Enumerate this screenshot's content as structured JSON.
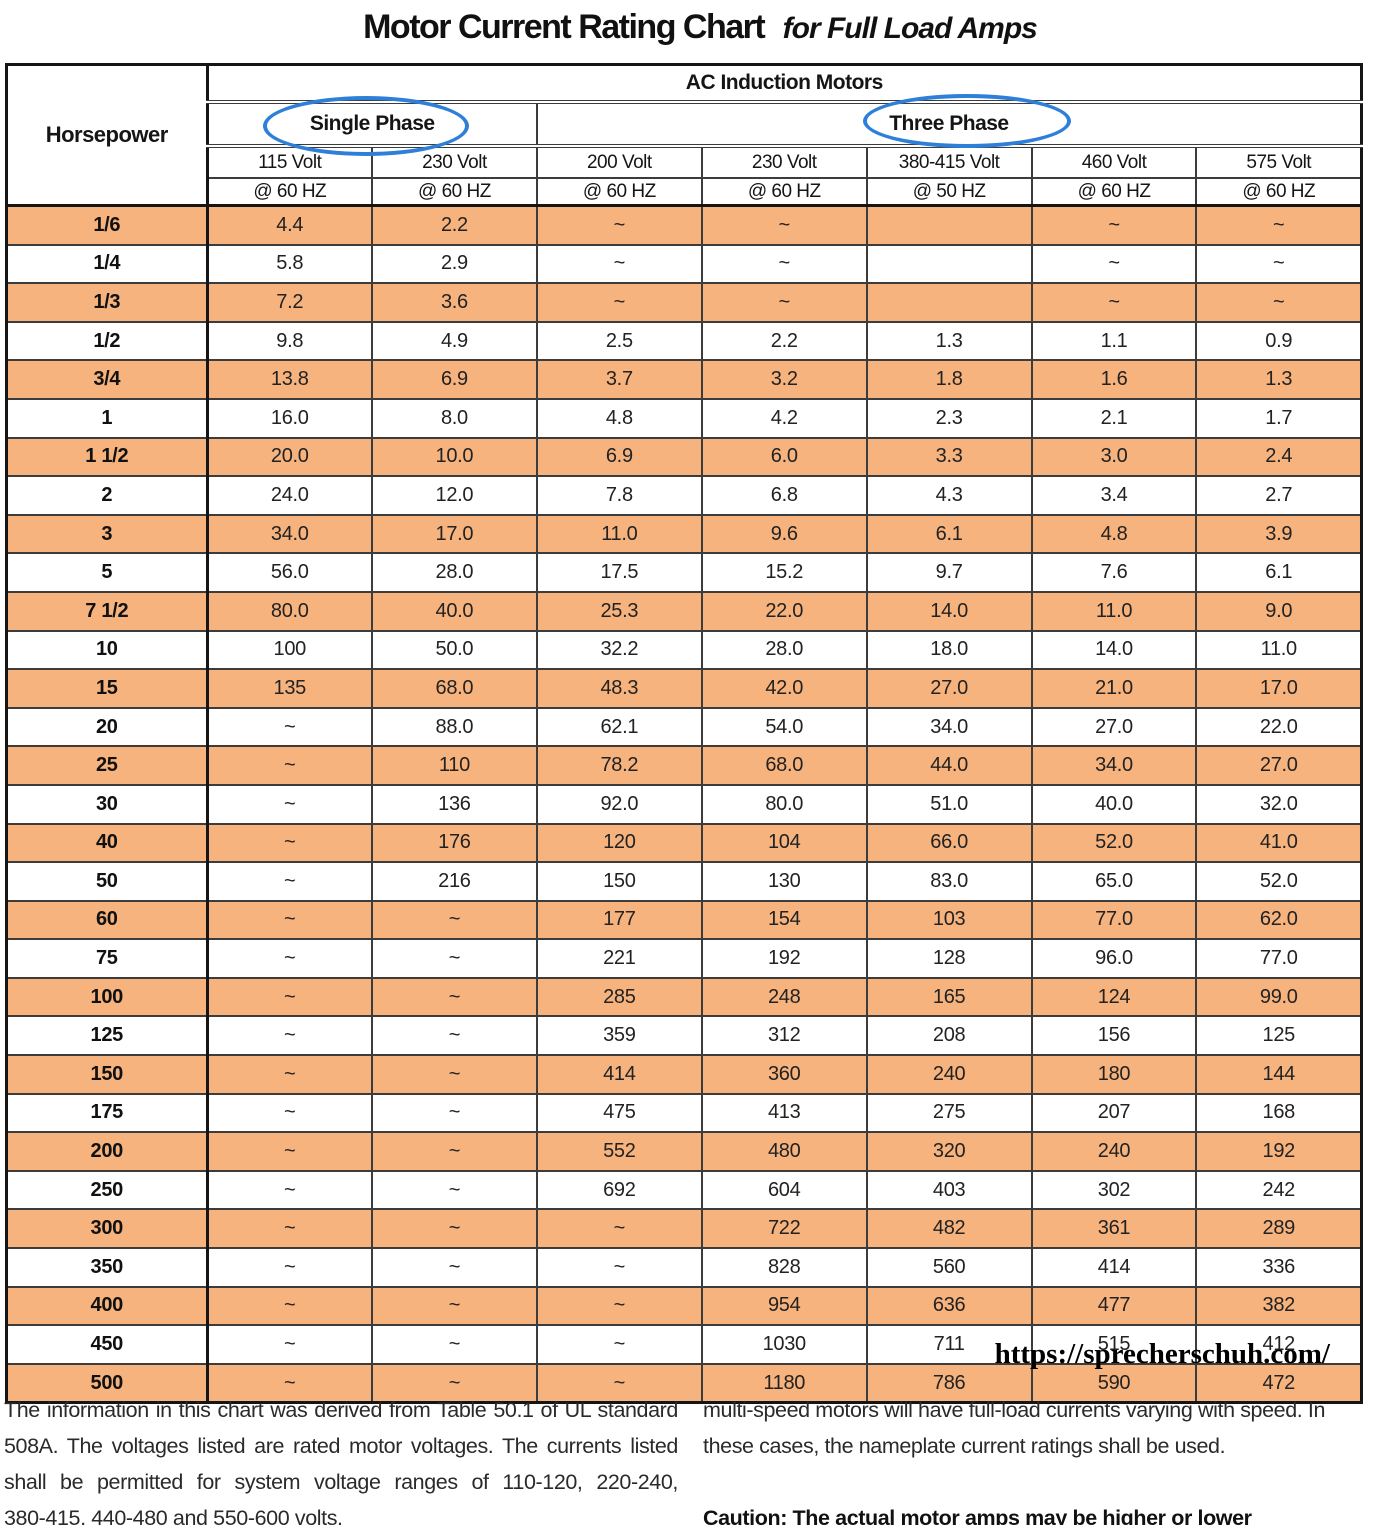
{
  "title": {
    "main": "Motor Current Rating Chart",
    "sub": "for Full Load Amps"
  },
  "table": {
    "col1_header": "Horsepower",
    "group_header": "AC Induction Motors",
    "phase_groups": [
      {
        "label": "Single Phase",
        "span": 2
      },
      {
        "label": "Three Phase",
        "span": 5
      }
    ],
    "columns": [
      {
        "volt": "115 Volt",
        "hz": "@ 60 HZ"
      },
      {
        "volt": "230 Volt",
        "hz": "@ 60 HZ"
      },
      {
        "volt": "200 Volt",
        "hz": "@ 60 HZ"
      },
      {
        "volt": "230 Volt",
        "hz": "@ 60 HZ"
      },
      {
        "volt": "380-415 Volt",
        "hz": "@ 50 HZ"
      },
      {
        "volt": "460 Volt",
        "hz": "@ 60 HZ"
      },
      {
        "volt": "575 Volt",
        "hz": "@ 60 HZ"
      }
    ],
    "rows": [
      {
        "hp": "1/6",
        "values": [
          "4.4",
          "2.2",
          "~",
          "~",
          "",
          "~",
          "~"
        ]
      },
      {
        "hp": "1/4",
        "values": [
          "5.8",
          "2.9",
          "~",
          "~",
          "",
          "~",
          "~"
        ]
      },
      {
        "hp": "1/3",
        "values": [
          "7.2",
          "3.6",
          "~",
          "~",
          "",
          "~",
          "~"
        ]
      },
      {
        "hp": "1/2",
        "values": [
          "9.8",
          "4.9",
          "2.5",
          "2.2",
          "1.3",
          "1.1",
          "0.9"
        ]
      },
      {
        "hp": "3/4",
        "values": [
          "13.8",
          "6.9",
          "3.7",
          "3.2",
          "1.8",
          "1.6",
          "1.3"
        ]
      },
      {
        "hp": "1",
        "values": [
          "16.0",
          "8.0",
          "4.8",
          "4.2",
          "2.3",
          "2.1",
          "1.7"
        ]
      },
      {
        "hp": "1 1/2",
        "values": [
          "20.0",
          "10.0",
          "6.9",
          "6.0",
          "3.3",
          "3.0",
          "2.4"
        ]
      },
      {
        "hp": "2",
        "values": [
          "24.0",
          "12.0",
          "7.8",
          "6.8",
          "4.3",
          "3.4",
          "2.7"
        ]
      },
      {
        "hp": "3",
        "values": [
          "34.0",
          "17.0",
          "11.0",
          "9.6",
          "6.1",
          "4.8",
          "3.9"
        ]
      },
      {
        "hp": "5",
        "values": [
          "56.0",
          "28.0",
          "17.5",
          "15.2",
          "9.7",
          "7.6",
          "6.1"
        ]
      },
      {
        "hp": "7 1/2",
        "values": [
          "80.0",
          "40.0",
          "25.3",
          "22.0",
          "14.0",
          "11.0",
          "9.0"
        ]
      },
      {
        "hp": "10",
        "values": [
          "100",
          "50.0",
          "32.2",
          "28.0",
          "18.0",
          "14.0",
          "11.0"
        ]
      },
      {
        "hp": "15",
        "values": [
          "135",
          "68.0",
          "48.3",
          "42.0",
          "27.0",
          "21.0",
          "17.0"
        ]
      },
      {
        "hp": "20",
        "values": [
          "~",
          "88.0",
          "62.1",
          "54.0",
          "34.0",
          "27.0",
          "22.0"
        ]
      },
      {
        "hp": "25",
        "values": [
          "~",
          "110",
          "78.2",
          "68.0",
          "44.0",
          "34.0",
          "27.0"
        ]
      },
      {
        "hp": "30",
        "values": [
          "~",
          "136",
          "92.0",
          "80.0",
          "51.0",
          "40.0",
          "32.0"
        ]
      },
      {
        "hp": "40",
        "values": [
          "~",
          "176",
          "120",
          "104",
          "66.0",
          "52.0",
          "41.0"
        ]
      },
      {
        "hp": "50",
        "values": [
          "~",
          "216",
          "150",
          "130",
          "83.0",
          "65.0",
          "52.0"
        ]
      },
      {
        "hp": "60",
        "values": [
          "~",
          "~",
          "177",
          "154",
          "103",
          "77.0",
          "62.0"
        ]
      },
      {
        "hp": "75",
        "values": [
          "~",
          "~",
          "221",
          "192",
          "128",
          "96.0",
          "77.0"
        ]
      },
      {
        "hp": "100",
        "values": [
          "~",
          "~",
          "285",
          "248",
          "165",
          "124",
          "99.0"
        ]
      },
      {
        "hp": "125",
        "values": [
          "~",
          "~",
          "359",
          "312",
          "208",
          "156",
          "125"
        ]
      },
      {
        "hp": "150",
        "values": [
          "~",
          "~",
          "414",
          "360",
          "240",
          "180",
          "144"
        ]
      },
      {
        "hp": "175",
        "values": [
          "~",
          "~",
          "475",
          "413",
          "275",
          "207",
          "168"
        ]
      },
      {
        "hp": "200",
        "values": [
          "~",
          "~",
          "552",
          "480",
          "320",
          "240",
          "192"
        ]
      },
      {
        "hp": "250",
        "values": [
          "~",
          "~",
          "692",
          "604",
          "403",
          "302",
          "242"
        ]
      },
      {
        "hp": "300",
        "values": [
          "~",
          "~",
          "~",
          "722",
          "482",
          "361",
          "289"
        ]
      },
      {
        "hp": "350",
        "values": [
          "~",
          "~",
          "~",
          "828",
          "560",
          "414",
          "336"
        ]
      },
      {
        "hp": "400",
        "values": [
          "~",
          "~",
          "~",
          "954",
          "636",
          "477",
          "382"
        ]
      },
      {
        "hp": "450",
        "values": [
          "~",
          "~",
          "~",
          "1030",
          "711",
          "515",
          "412"
        ]
      },
      {
        "hp": "500",
        "values": [
          "~",
          "~",
          "~",
          "1180",
          "786",
          "590",
          "472"
        ]
      }
    ]
  },
  "annotations": {
    "single_phase_circle": "ellipse around Single Phase",
    "three_phase_circle": "ellipse around Three Phase"
  },
  "colors": {
    "row_highlight": "#F6B37E",
    "circle_blue": "#2E7FD8"
  },
  "url": "https://sprecherschuh.com/",
  "footer": {
    "left_lines": [
      "The information in this chart was derived from Table 50.1 of UL standard",
      "508A. The voltages listed are rated motor voltages. The currents listed",
      "shall be permitted for system voltage ranges of 110-120, 220-240,",
      "380-415, 440-480 and 550-600 volts."
    ],
    "right_lines": [
      "multi-speed motors will have full-load currents varying with speed. In",
      "these cases, the nameplate current ratings shall be used."
    ],
    "caution": "Caution: The actual motor amps may be higher or lower"
  }
}
